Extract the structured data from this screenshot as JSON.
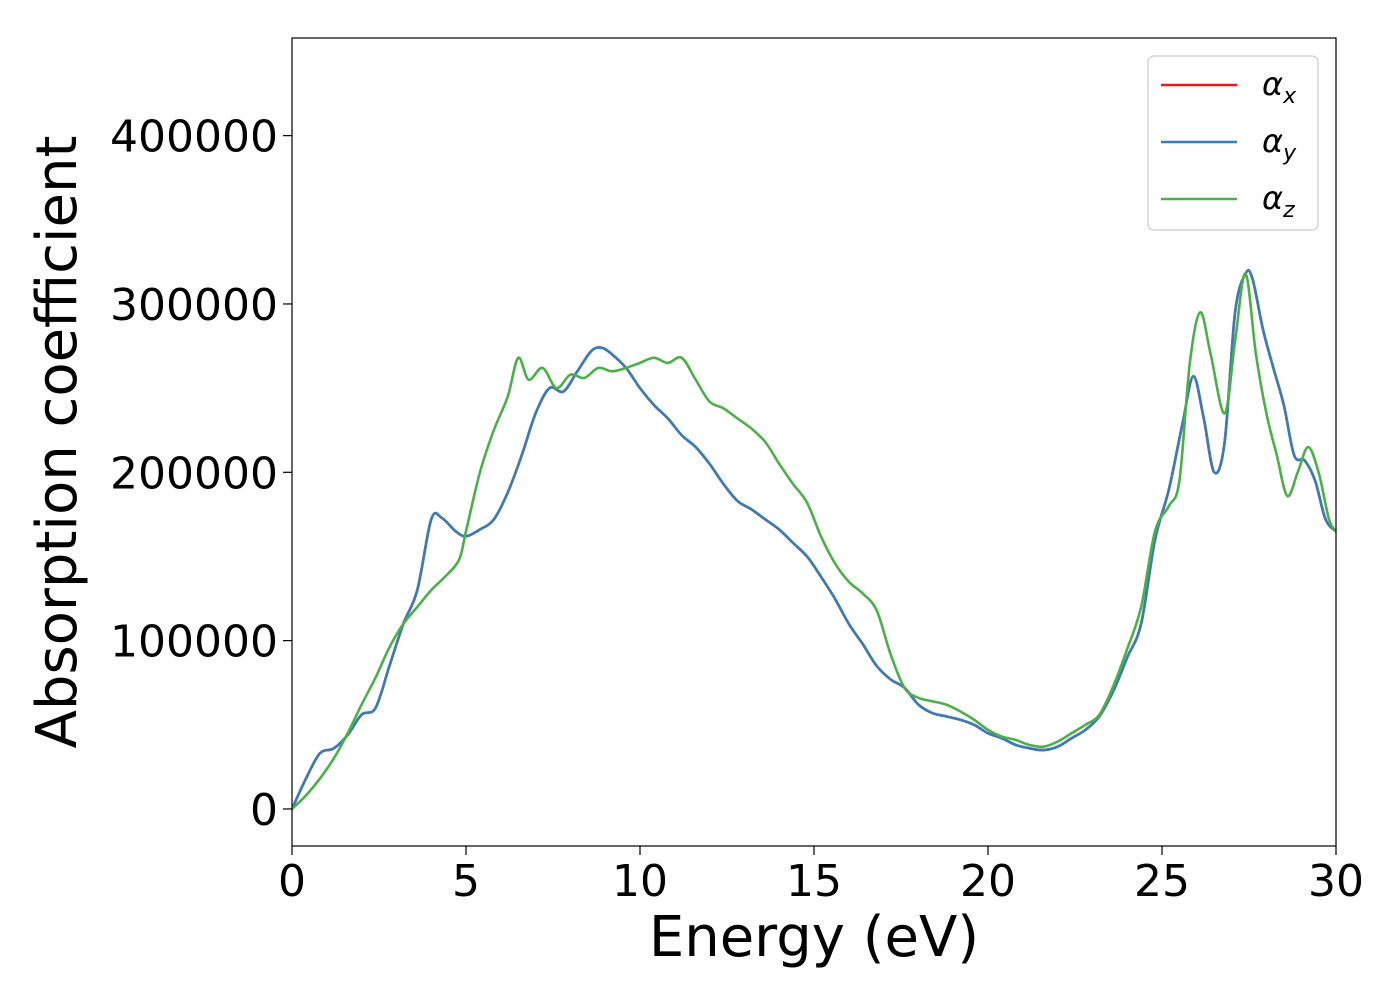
{
  "chart_data": {
    "type": "line",
    "title": "",
    "xlabel": "Energy (eV)",
    "ylabel": "Absorption coefficient",
    "xlim": [
      0,
      30
    ],
    "ylim": [
      -22000,
      458000
    ],
    "xticks": [
      0,
      5,
      10,
      15,
      20,
      25,
      30
    ],
    "xtick_labels": [
      "0",
      "5",
      "10",
      "15",
      "20",
      "25",
      "30"
    ],
    "yticks": [
      0,
      100000,
      200000,
      300000,
      400000
    ],
    "ytick_labels": [
      "0",
      "100000",
      "200000",
      "300000",
      "400000"
    ],
    "grid": false,
    "legend_position": "top-right",
    "series": [
      {
        "name": "α",
        "subscript": "x",
        "color": "#e41a1c",
        "x": [
          0,
          0.4,
          0.8,
          1.2,
          1.6,
          2.0,
          2.4,
          2.8,
          3.2,
          3.6,
          4.0,
          4.3,
          4.7,
          5.0,
          5.4,
          5.8,
          6.2,
          6.6,
          7.0,
          7.4,
          7.8,
          8.2,
          8.6,
          8.9,
          9.2,
          9.6,
          10.0,
          10.4,
          10.8,
          11.2,
          11.6,
          12.0,
          12.4,
          12.8,
          13.2,
          13.6,
          14.0,
          14.4,
          14.8,
          15.2,
          15.6,
          16.0,
          16.4,
          16.8,
          17.2,
          17.6,
          18.0,
          18.4,
          18.8,
          19.2,
          19.6,
          20.0,
          20.4,
          20.8,
          21.2,
          21.6,
          22.0,
          22.4,
          22.8,
          23.2,
          23.6,
          24.0,
          24.4,
          24.8,
          25.2,
          25.6,
          25.9,
          26.2,
          26.5,
          26.8,
          27.1,
          27.4,
          27.6,
          27.9,
          28.2,
          28.5,
          28.8,
          29.1,
          29.4,
          29.7,
          30.0
        ],
        "values": [
          0,
          18000,
          33000,
          36000,
          44000,
          56000,
          60000,
          85000,
          110000,
          130000,
          172000,
          173000,
          165000,
          162000,
          166000,
          172000,
          188000,
          210000,
          235000,
          250000,
          248000,
          260000,
          272000,
          274000,
          270000,
          262000,
          250000,
          240000,
          232000,
          222000,
          215000,
          205000,
          193000,
          183000,
          178000,
          172000,
          166000,
          158000,
          150000,
          138000,
          125000,
          110000,
          98000,
          85000,
          77000,
          72000,
          62000,
          57000,
          55000,
          53000,
          50000,
          45000,
          42000,
          38000,
          36000,
          35000,
          37000,
          42000,
          47000,
          55000,
          70000,
          90000,
          110000,
          160000,
          190000,
          230000,
          257000,
          232000,
          200000,
          218000,
          295000,
          318000,
          315000,
          285000,
          262000,
          240000,
          210000,
          207000,
          195000,
          172000,
          165000
        ]
      },
      {
        "name": "α",
        "subscript": "y",
        "color": "#377eb8",
        "x": [
          0,
          0.4,
          0.8,
          1.2,
          1.6,
          2.0,
          2.4,
          2.8,
          3.2,
          3.6,
          4.0,
          4.3,
          4.7,
          5.0,
          5.4,
          5.8,
          6.2,
          6.6,
          7.0,
          7.4,
          7.8,
          8.2,
          8.6,
          8.9,
          9.2,
          9.6,
          10.0,
          10.4,
          10.8,
          11.2,
          11.6,
          12.0,
          12.4,
          12.8,
          13.2,
          13.6,
          14.0,
          14.4,
          14.8,
          15.2,
          15.6,
          16.0,
          16.4,
          16.8,
          17.2,
          17.6,
          18.0,
          18.4,
          18.8,
          19.2,
          19.6,
          20.0,
          20.4,
          20.8,
          21.2,
          21.6,
          22.0,
          22.4,
          22.8,
          23.2,
          23.6,
          24.0,
          24.4,
          24.8,
          25.2,
          25.6,
          25.9,
          26.2,
          26.5,
          26.8,
          27.1,
          27.4,
          27.6,
          27.9,
          28.2,
          28.5,
          28.8,
          29.1,
          29.4,
          29.7,
          30.0
        ],
        "values": [
          0,
          18000,
          33000,
          36000,
          44000,
          56000,
          60000,
          85000,
          110000,
          130000,
          172000,
          173000,
          165000,
          162000,
          166000,
          172000,
          188000,
          210000,
          235000,
          250000,
          248000,
          260000,
          272000,
          274000,
          270000,
          262000,
          250000,
          240000,
          232000,
          222000,
          215000,
          205000,
          193000,
          183000,
          178000,
          172000,
          166000,
          158000,
          150000,
          138000,
          125000,
          110000,
          98000,
          85000,
          77000,
          72000,
          62000,
          57000,
          55000,
          53000,
          50000,
          45000,
          42000,
          38000,
          36000,
          35000,
          37000,
          42000,
          47000,
          55000,
          70000,
          90000,
          110000,
          160000,
          190000,
          230000,
          257000,
          232000,
          200000,
          218000,
          295000,
          318000,
          315000,
          285000,
          262000,
          240000,
          210000,
          207000,
          195000,
          172000,
          165000
        ]
      },
      {
        "name": "α",
        "subscript": "z",
        "color": "#4daf4a",
        "x": [
          0,
          0.4,
          0.8,
          1.2,
          1.6,
          2.0,
          2.4,
          2.8,
          3.2,
          3.6,
          4.0,
          4.4,
          4.8,
          5.0,
          5.4,
          5.8,
          6.2,
          6.5,
          6.8,
          7.2,
          7.6,
          8.0,
          8.4,
          8.8,
          9.2,
          9.6,
          10.0,
          10.4,
          10.8,
          11.2,
          11.6,
          12.0,
          12.4,
          12.8,
          13.2,
          13.6,
          14.0,
          14.4,
          14.8,
          15.2,
          15.6,
          16.0,
          16.4,
          16.8,
          17.2,
          17.6,
          18.0,
          18.4,
          18.8,
          19.2,
          19.6,
          20.0,
          20.4,
          20.8,
          21.2,
          21.6,
          22.0,
          22.4,
          22.8,
          23.2,
          23.6,
          24.0,
          24.4,
          24.8,
          25.2,
          25.5,
          25.8,
          26.1,
          26.4,
          26.8,
          27.1,
          27.4,
          27.7,
          28.0,
          28.3,
          28.6,
          28.9,
          29.2,
          29.5,
          29.8,
          30.0
        ],
        "values": [
          0,
          8000,
          18000,
          30000,
          45000,
          62000,
          78000,
          96000,
          110000,
          120000,
          130000,
          138000,
          148000,
          165000,
          200000,
          225000,
          245000,
          268000,
          255000,
          262000,
          250000,
          258000,
          256000,
          262000,
          260000,
          262000,
          265000,
          268000,
          265000,
          268000,
          255000,
          242000,
          238000,
          232000,
          226000,
          218000,
          205000,
          193000,
          182000,
          162000,
          146000,
          135000,
          128000,
          118000,
          92000,
          72000,
          66000,
          64000,
          62000,
          58000,
          53000,
          47000,
          43000,
          41000,
          38000,
          37000,
          40000,
          45000,
          50000,
          56000,
          73000,
          95000,
          120000,
          165000,
          180000,
          195000,
          265000,
          295000,
          270000,
          235000,
          278000,
          318000,
          270000,
          235000,
          210000,
          186000,
          200000,
          215000,
          200000,
          172000,
          165000
        ]
      }
    ]
  }
}
